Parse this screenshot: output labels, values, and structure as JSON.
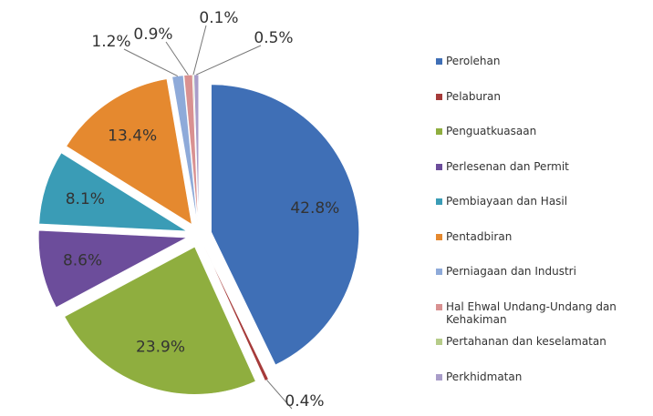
{
  "chart_data": {
    "type": "pie",
    "categories": [
      "Perolehan",
      "Pelaburan",
      "Penguatkuasaan",
      "Perlesenan dan Permit",
      "Pembiayaan dan Hasil",
      "Pentadbiran",
      "Perniagaan dan Industri",
      "Hal Ehwal Undang-Undang dan Kehakiman",
      "Pertahanan dan keselamatan",
      "Perkhidmatan"
    ],
    "values": [
      42.8,
      0.4,
      23.9,
      8.6,
      8.1,
      13.4,
      1.2,
      0.9,
      0.1,
      0.5
    ],
    "value_labels": [
      "42.8%",
      "0.4%",
      "23.9%",
      "8.6%",
      "8.1%",
      "13.4%",
      "1.2%",
      "0.9%",
      "0.1%",
      "0.5%"
    ],
    "colors": [
      "#3f6fb6",
      "#a63b3a",
      "#8fae3f",
      "#6c4d9b",
      "#3a9cb6",
      "#e5892f",
      "#8eaad9",
      "#d99191",
      "#b6cc89",
      "#a99dc9"
    ],
    "legend": "right"
  }
}
